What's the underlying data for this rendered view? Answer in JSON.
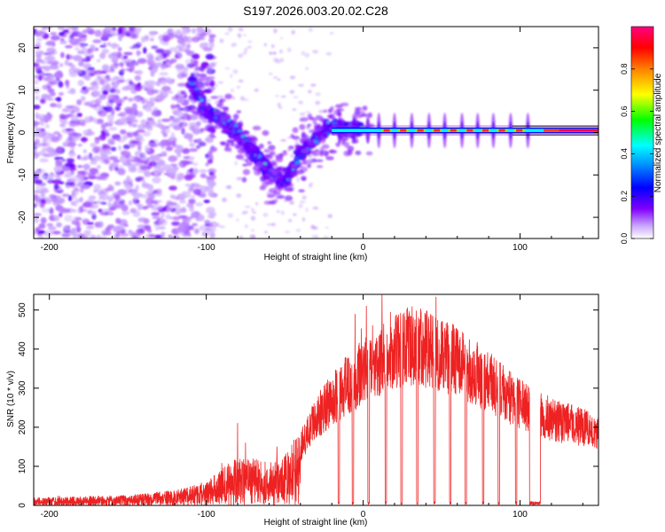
{
  "title": "S197.2026.003.20.02.C28",
  "chart_data": [
    {
      "type": "heatmap",
      "name": "spectrogram",
      "xlabel": "Height of straight line (km)",
      "ylabel": "Frequency (Hz)",
      "xlim": [
        -210,
        150
      ],
      "ylim": [
        -25,
        25
      ],
      "xticks": [
        -200,
        -100,
        0,
        100
      ],
      "yticks": [
        -20,
        -10,
        0,
        10,
        20
      ],
      "colorbar": {
        "label": "Normalized spectral amplitude",
        "range": [
          0,
          1
        ],
        "ticks": [
          "0.0",
          "0.2",
          "0.4",
          "0.6",
          "0.8"
        ],
        "colormap": [
          "#ffffff",
          "#8000ff",
          "#0000ff",
          "#00ffff",
          "#00ff00",
          "#ffff00",
          "#ff8000",
          "#ff0000",
          "#ff0080"
        ]
      },
      "features": {
        "noise_region_x": [
          -210,
          -95
        ],
        "descending_track": [
          [
            -110,
            12
          ],
          [
            -100,
            5
          ],
          [
            -90,
            3
          ],
          [
            -80,
            0
          ],
          [
            -72,
            -4
          ],
          [
            -65,
            -7
          ],
          [
            -58,
            -10
          ],
          [
            -50,
            -12
          ],
          [
            -40,
            -5
          ],
          [
            -30,
            -1
          ],
          [
            -20,
            1.5
          ],
          [
            -10,
            1
          ],
          [
            0,
            0.5
          ]
        ],
        "carrier_line_freq": 0.5,
        "carrier_from_x": -20,
        "pulse_x": [
          10,
          20,
          31,
          42,
          52,
          63,
          73,
          83,
          94,
          105
        ],
        "accent_color": "#7a1bff"
      }
    },
    {
      "type": "line",
      "name": "snr",
      "xlabel": "Height of straight line (km)",
      "ylabel": "SNR (10 * v/v)",
      "xlim": [
        -210,
        150
      ],
      "ylim": [
        0,
        540
      ],
      "xticks": [
        -200,
        -100,
        0,
        100
      ],
      "yticks": [
        0,
        100,
        200,
        300,
        400,
        500
      ],
      "color": "#ee2222",
      "envelope": [
        [
          -210,
          15
        ],
        [
          -150,
          20
        ],
        [
          -120,
          30
        ],
        [
          -100,
          45
        ],
        [
          -85,
          90
        ],
        [
          -70,
          95
        ],
        [
          -60,
          85
        ],
        [
          -50,
          100
        ],
        [
          -40,
          150
        ],
        [
          -30,
          225
        ],
        [
          -20,
          270
        ],
        [
          -10,
          310
        ],
        [
          0,
          340
        ],
        [
          10,
          365
        ],
        [
          20,
          395
        ],
        [
          30,
          410
        ],
        [
          40,
          400
        ],
        [
          50,
          385
        ],
        [
          60,
          365
        ],
        [
          70,
          345
        ],
        [
          80,
          315
        ],
        [
          90,
          285
        ],
        [
          100,
          260
        ],
        [
          110,
          240
        ],
        [
          120,
          220
        ],
        [
          135,
          205
        ],
        [
          150,
          185
        ]
      ],
      "spikes": [
        [
          -80,
          210
        ],
        [
          -75,
          160
        ],
        [
          -55,
          150
        ],
        [
          2,
          510
        ],
        [
          6,
          460
        ],
        [
          12,
          538
        ],
        [
          26,
          445
        ],
        [
          35,
          440
        ],
        [
          43,
          430
        ],
        [
          55,
          400
        ]
      ],
      "dropouts": [
        [
          -16,
          -15
        ],
        [
          -7,
          -6
        ],
        [
          3,
          4
        ],
        [
          14,
          15
        ],
        [
          24,
          25
        ],
        [
          34,
          35
        ],
        [
          45,
          46
        ],
        [
          55,
          56
        ],
        [
          65,
          66
        ],
        [
          76,
          77
        ],
        [
          86,
          87
        ],
        [
          97,
          98
        ],
        [
          106,
          113
        ]
      ]
    }
  ]
}
